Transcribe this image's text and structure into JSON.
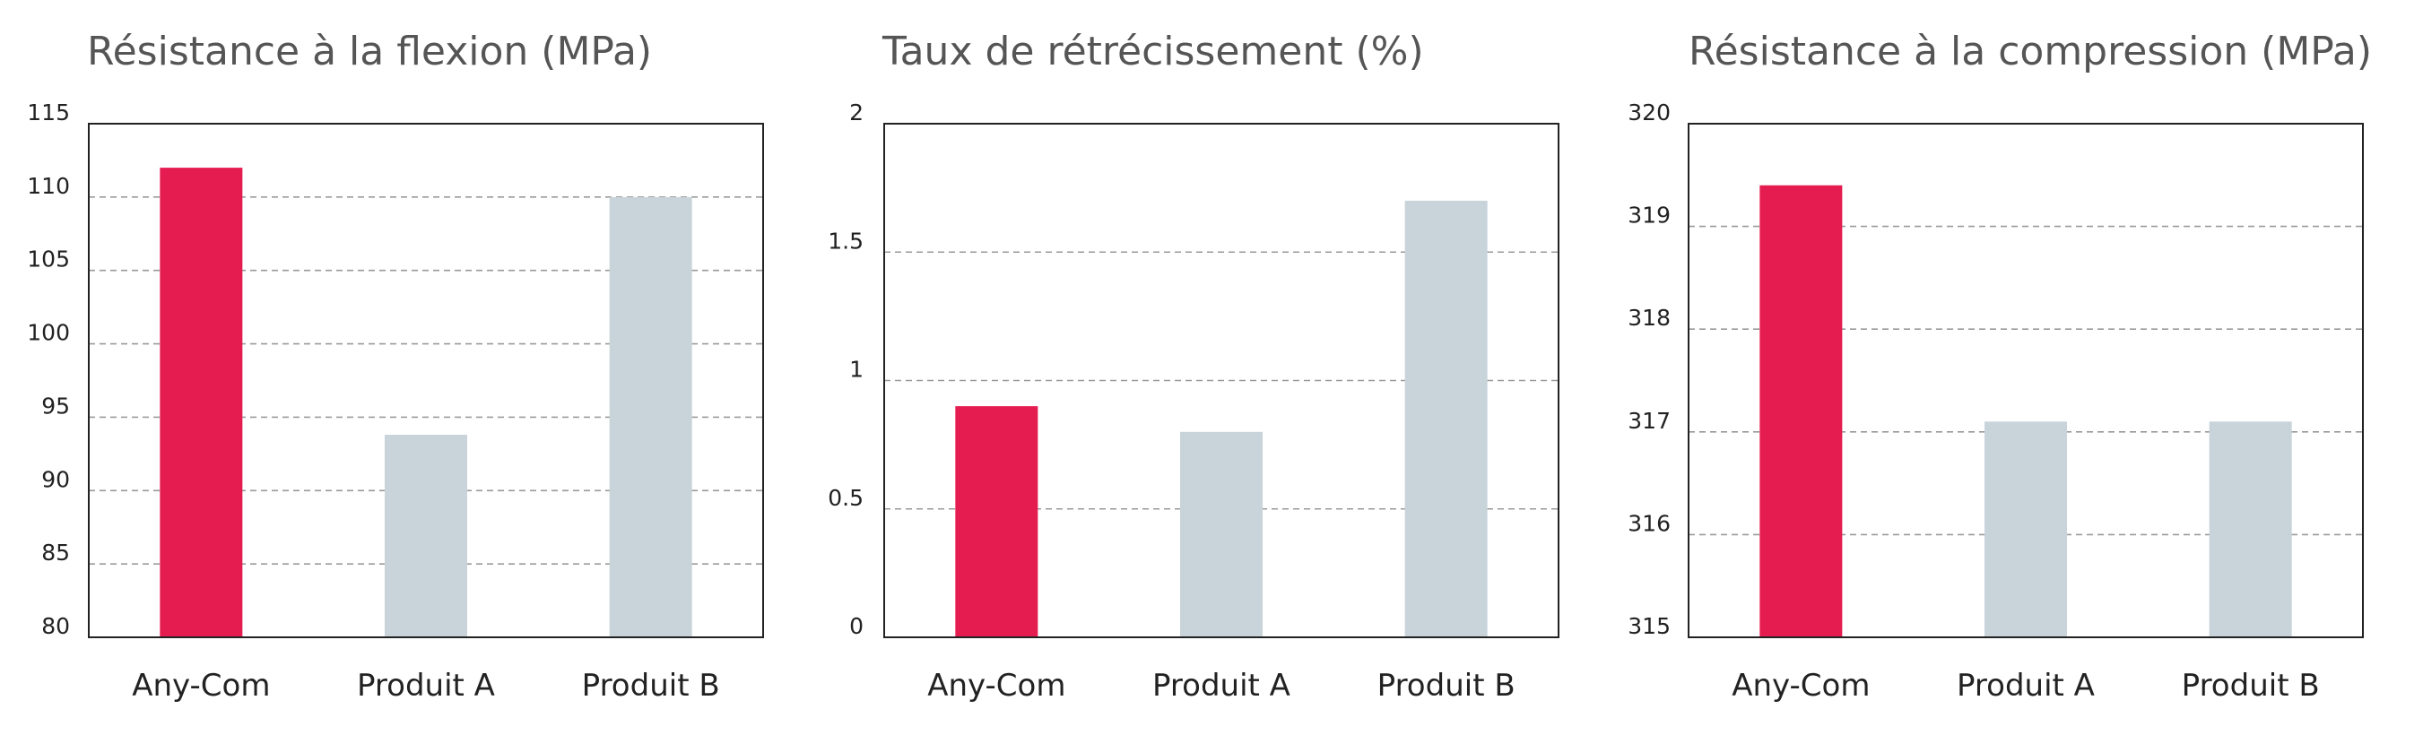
{
  "chart_data": [
    {
      "type": "bar",
      "title": "Résistance à la flexion (MPa)",
      "categories": [
        "Any-Com",
        "Produit A",
        "Produit B"
      ],
      "values": [
        112,
        93.8,
        110
      ],
      "ylim": [
        80,
        115
      ],
      "yticks": [
        80,
        85,
        90,
        95,
        100,
        105,
        110,
        115
      ],
      "ytick_labels": [
        "80",
        "85",
        "90",
        "95",
        "100",
        "105",
        "110",
        "115"
      ],
      "grid": true
    },
    {
      "type": "bar",
      "title": "Taux de rétrécissement (%)",
      "categories": [
        "Any-Com",
        "Produit A",
        "Produit B"
      ],
      "values": [
        0.9,
        0.8,
        1.7
      ],
      "ylim": [
        0,
        2
      ],
      "yticks": [
        0,
        0.5,
        1,
        1.5,
        2
      ],
      "ytick_labels": [
        "0",
        "0.5",
        "1",
        "1.5",
        "2"
      ],
      "grid": true
    },
    {
      "type": "bar",
      "title": "Résistance à la compression (MPa)",
      "categories": [
        "Any-Com",
        "Produit A",
        "Produit B"
      ],
      "values": [
        319.4,
        317.1,
        317.1
      ],
      "ylim": [
        315,
        320
      ],
      "yticks": [
        315,
        316,
        317,
        318,
        319,
        320
      ],
      "ytick_labels": [
        "315",
        "316",
        "317",
        "318",
        "319",
        "320"
      ],
      "grid": true
    }
  ],
  "colors": {
    "highlight": "#e51c50",
    "other": "#c8d4da",
    "grid": "#9a9a9a",
    "axis": "#222222",
    "title": "#555555"
  }
}
